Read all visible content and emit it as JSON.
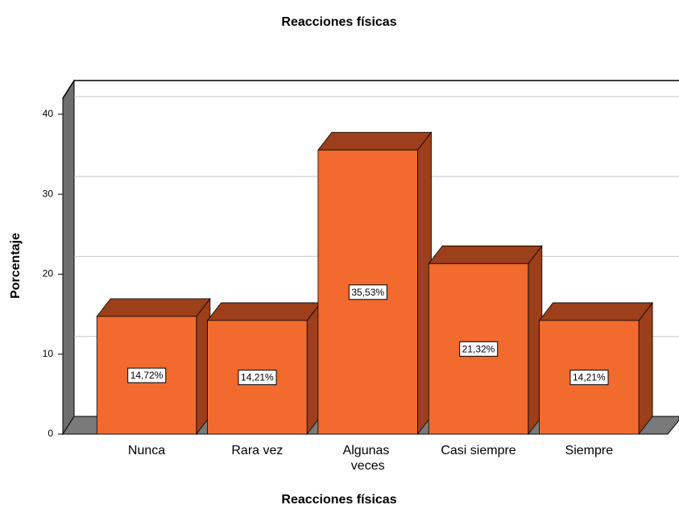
{
  "chart_data": {
    "type": "bar3d",
    "title": "Reacciones físicas",
    "x_label": "Reacciones físicas",
    "y_label": "Porcentaje",
    "categories": [
      "Nunca",
      "Rara vez",
      "Algunas veces",
      "Casi siempre",
      "Siempre"
    ],
    "values": [
      14.72,
      14.21,
      35.53,
      21.32,
      14.21
    ],
    "value_labels": [
      "14,72%",
      "14,21%",
      "35,53%",
      "21,32%",
      "14,21%"
    ],
    "color": "#f26a2e",
    "shade_color": "#9c3f1a",
    "ylim": [
      0,
      42
    ],
    "yticks": [
      0,
      10,
      20,
      30,
      40
    ],
    "grid": true
  }
}
